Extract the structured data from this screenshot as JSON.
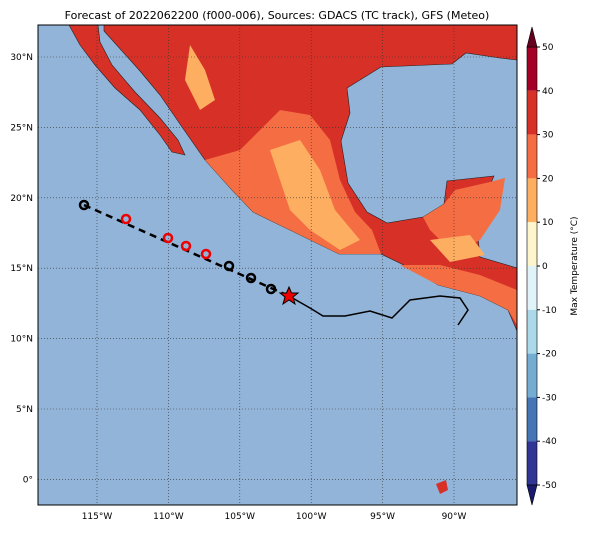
{
  "title": "Forecast of 2022062200 (f000-006), Sources: GDACS (TC track), GFS (Meteo)",
  "map": {
    "lat_labels": [
      "30°N",
      "25°N",
      "20°N",
      "15°N",
      "10°N",
      "5°N",
      "0°"
    ],
    "lon_labels": [
      "115°W",
      "110°W",
      "105°W",
      "100°W",
      "95°W",
      "90°W"
    ]
  },
  "colorbar": {
    "label": "Max Temperature (°C)",
    "ticks": [
      50,
      40,
      30,
      20,
      10,
      0,
      -10,
      -20,
      -30,
      -40,
      -50
    ],
    "colors": [
      "#a50026",
      "#d73027",
      "#f46d43",
      "#fdae61",
      "#fff5cc",
      "#e0f3f8",
      "#abd9e9",
      "#74add1",
      "#4575b4",
      "#313695"
    ],
    "over_color": "#67001f",
    "under_color": "#1a1a6e"
  }
}
